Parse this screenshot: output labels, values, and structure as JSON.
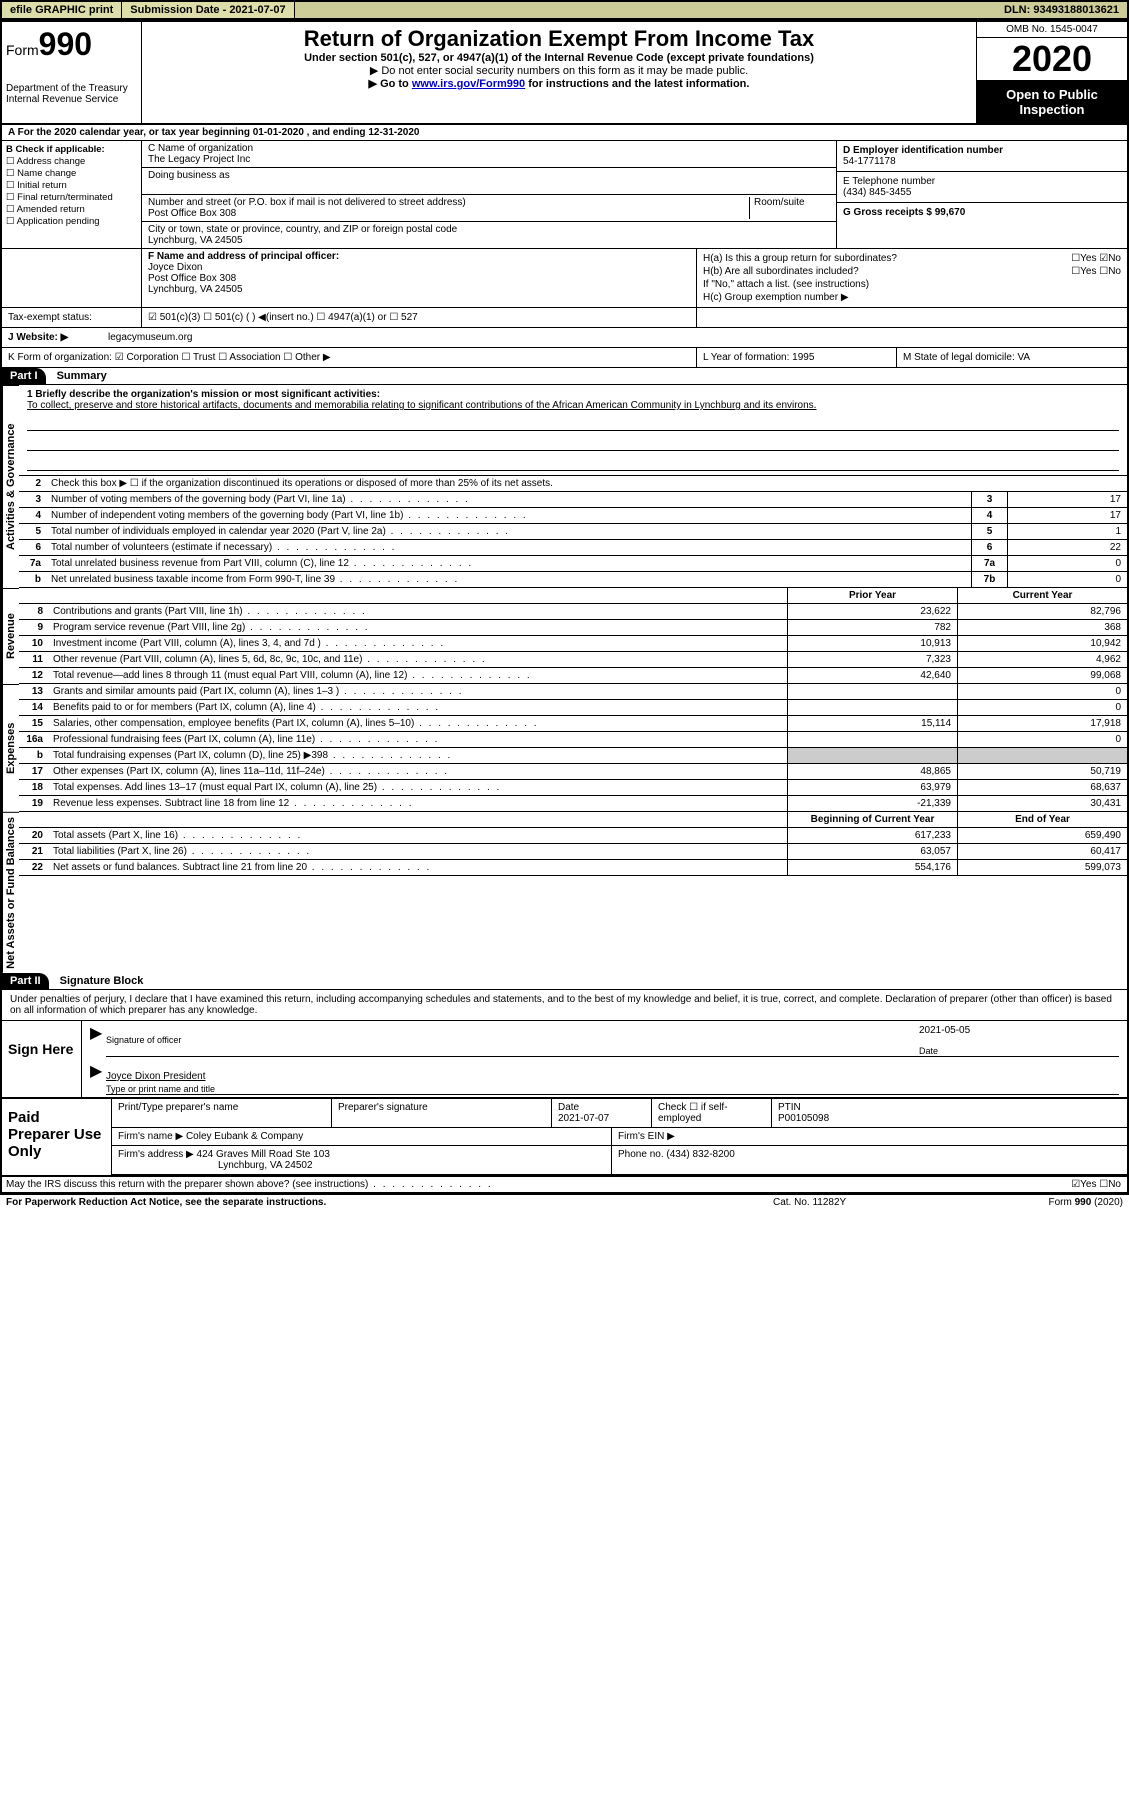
{
  "topbar": {
    "efile": "efile GRAPHIC print",
    "submission_label": "Submission Date - 2021-07-07",
    "dln": "DLN: 93493188013621"
  },
  "header": {
    "form_prefix": "Form",
    "form_number": "990",
    "dept": "Department of the Treasury",
    "irs": "Internal Revenue Service",
    "title": "Return of Organization Exempt From Income Tax",
    "subtitle": "Under section 501(c), 527, or 4947(a)(1) of the Internal Revenue Code (except private foundations)",
    "line2": "▶ Do not enter social security numbers on this form as it may be made public.",
    "line3_pre": "▶ Go to ",
    "line3_link": "www.irs.gov/Form990",
    "line3_post": " for instructions and the latest information.",
    "omb": "OMB No. 1545-0047",
    "year": "2020",
    "open": "Open to Public Inspection"
  },
  "row_a": "A For the 2020 calendar year, or tax year beginning 01-01-2020   , and ending 12-31-2020",
  "col_b": {
    "label": "B Check if applicable:",
    "opts": [
      "☐ Address change",
      "☐ Name change",
      "☐ Initial return",
      "☐ Final return/terminated",
      "☐ Amended return",
      "☐ Application pending"
    ]
  },
  "col_c": {
    "name_label": "C Name of organization",
    "name": "The Legacy Project Inc",
    "dba_label": "Doing business as",
    "addr_label": "Number and street (or P.O. box if mail is not delivered to street address)",
    "addr": "Post Office Box 308",
    "room_label": "Room/suite",
    "city_label": "City or town, state or province, country, and ZIP or foreign postal code",
    "city": "Lynchburg, VA  24505"
  },
  "col_d": {
    "ein_label": "D Employer identification number",
    "ein": "54-1771178",
    "phone_label": "E Telephone number",
    "phone": "(434) 845-3455",
    "gross_label": "G Gross receipts $ 99,670"
  },
  "col_f": {
    "label": "F  Name and address of principal officer:",
    "name": "Joyce Dixon",
    "addr1": "Post Office Box 308",
    "addr2": "Lynchburg, VA  24505"
  },
  "col_h": {
    "ha": "H(a)  Is this a group return for subordinates?",
    "ha_ans": "☐Yes ☑No",
    "hb": "H(b)  Are all subordinates included?",
    "hb_ans": "☐Yes ☐No",
    "hb_note": "If \"No,\" attach a list. (see instructions)",
    "hc": "H(c)  Group exemption number ▶"
  },
  "status": {
    "label": "Tax-exempt status:",
    "opts": "☑ 501(c)(3)   ☐ 501(c) (   ) ◀(insert no.)   ☐ 4947(a)(1) or   ☐ 527"
  },
  "website": {
    "label": "J  Website: ▶",
    "value": "legacymuseum.org"
  },
  "row_k": {
    "k": "K Form of organization:  ☑ Corporation  ☐ Trust  ☐ Association  ☐ Other ▶",
    "l": "L Year of formation: 1995",
    "m": "M State of legal domicile: VA"
  },
  "part1": {
    "header": "Part I",
    "title": "Summary",
    "mission_label": "1  Briefly describe the organization's mission or most significant activities:",
    "mission": "To collect, preserve and store historical artifacts, documents and memorabilia relating to significant contributions of the African American Community in Lynchburg and its environs.",
    "line2": "Check this box ▶ ☐  if the organization discontinued its operations or disposed of more than 25% of its net assets."
  },
  "side_labels": {
    "gov": "Activities & Governance",
    "rev": "Revenue",
    "exp": "Expenses",
    "net": "Net Assets or Fund Balances"
  },
  "gov_lines": [
    {
      "n": "3",
      "d": "Number of voting members of the governing body (Part VI, line 1a)",
      "b": "3",
      "v": "17"
    },
    {
      "n": "4",
      "d": "Number of independent voting members of the governing body (Part VI, line 1b)",
      "b": "4",
      "v": "17"
    },
    {
      "n": "5",
      "d": "Total number of individuals employed in calendar year 2020 (Part V, line 2a)",
      "b": "5",
      "v": "1"
    },
    {
      "n": "6",
      "d": "Total number of volunteers (estimate if necessary)",
      "b": "6",
      "v": "22"
    },
    {
      "n": "7a",
      "d": "Total unrelated business revenue from Part VIII, column (C), line 12",
      "b": "7a",
      "v": "0"
    },
    {
      "n": "b",
      "d": "Net unrelated business taxable income from Form 990-T, line 39",
      "b": "7b",
      "v": "0"
    }
  ],
  "rev_header": {
    "prior": "Prior Year",
    "current": "Current Year"
  },
  "rev_lines": [
    {
      "n": "8",
      "d": "Contributions and grants (Part VIII, line 1h)",
      "p": "23,622",
      "c": "82,796"
    },
    {
      "n": "9",
      "d": "Program service revenue (Part VIII, line 2g)",
      "p": "782",
      "c": "368"
    },
    {
      "n": "10",
      "d": "Investment income (Part VIII, column (A), lines 3, 4, and 7d )",
      "p": "10,913",
      "c": "10,942"
    },
    {
      "n": "11",
      "d": "Other revenue (Part VIII, column (A), lines 5, 6d, 8c, 9c, 10c, and 11e)",
      "p": "7,323",
      "c": "4,962"
    },
    {
      "n": "12",
      "d": "Total revenue—add lines 8 through 11 (must equal Part VIII, column (A), line 12)",
      "p": "42,640",
      "c": "99,068"
    }
  ],
  "exp_lines": [
    {
      "n": "13",
      "d": "Grants and similar amounts paid (Part IX, column (A), lines 1–3 )",
      "p": "",
      "c": "0"
    },
    {
      "n": "14",
      "d": "Benefits paid to or for members (Part IX, column (A), line 4)",
      "p": "",
      "c": "0"
    },
    {
      "n": "15",
      "d": "Salaries, other compensation, employee benefits (Part IX, column (A), lines 5–10)",
      "p": "15,114",
      "c": "17,918"
    },
    {
      "n": "16a",
      "d": "Professional fundraising fees (Part IX, column (A), line 11e)",
      "p": "",
      "c": "0"
    },
    {
      "n": "b",
      "d": "Total fundraising expenses (Part IX, column (D), line 25) ▶398",
      "p": "shaded",
      "c": "shaded"
    },
    {
      "n": "17",
      "d": "Other expenses (Part IX, column (A), lines 11a–11d, 11f–24e)",
      "p": "48,865",
      "c": "50,719"
    },
    {
      "n": "18",
      "d": "Total expenses. Add lines 13–17 (must equal Part IX, column (A), line 25)",
      "p": "63,979",
      "c": "68,637"
    },
    {
      "n": "19",
      "d": "Revenue less expenses. Subtract line 18 from line 12",
      "p": "-21,339",
      "c": "30,431"
    }
  ],
  "net_header": {
    "begin": "Beginning of Current Year",
    "end": "End of Year"
  },
  "net_lines": [
    {
      "n": "20",
      "d": "Total assets (Part X, line 16)",
      "p": "617,233",
      "c": "659,490"
    },
    {
      "n": "21",
      "d": "Total liabilities (Part X, line 26)",
      "p": "63,057",
      "c": "60,417"
    },
    {
      "n": "22",
      "d": "Net assets or fund balances. Subtract line 21 from line 20",
      "p": "554,176",
      "c": "599,073"
    }
  ],
  "part2": {
    "header": "Part II",
    "title": "Signature Block",
    "declaration": "Under penalties of perjury, I declare that I have examined this return, including accompanying schedules and statements, and to the best of my knowledge and belief, it is true, correct, and complete. Declaration of preparer (other than officer) is based on all information of which preparer has any knowledge."
  },
  "sign": {
    "label": "Sign Here",
    "sig_label": "Signature of officer",
    "date_label": "Date",
    "date": "2021-05-05",
    "name": "Joyce Dixon  President",
    "name_label": "Type or print name and title"
  },
  "prep": {
    "label": "Paid Preparer Use Only",
    "r1c1": "Print/Type preparer's name",
    "r1c2": "Preparer's signature",
    "r1c3_label": "Date",
    "r1c3": "2021-07-07",
    "r1c4": "Check ☐ if self-employed",
    "r1c5_label": "PTIN",
    "r1c5": "P00105098",
    "r2_label": "Firm's name    ▶",
    "r2": "Coley Eubank & Company",
    "r2b_label": "Firm's EIN ▶",
    "r3_label": "Firm's address ▶",
    "r3a": "424 Graves Mill Road Ste 103",
    "r3b": "Lynchburg, VA  24502",
    "r3c_label": "Phone no.",
    "r3c": "(434) 832-8200"
  },
  "discuss": {
    "q": "May the IRS discuss this return with the preparer shown above? (see instructions)",
    "ans": "☑Yes  ☐No"
  },
  "footer": {
    "left": "For Paperwork Reduction Act Notice, see the separate instructions.",
    "mid": "Cat. No. 11282Y",
    "right_pre": "Form ",
    "right_bold": "990",
    "right_post": " (2020)"
  }
}
